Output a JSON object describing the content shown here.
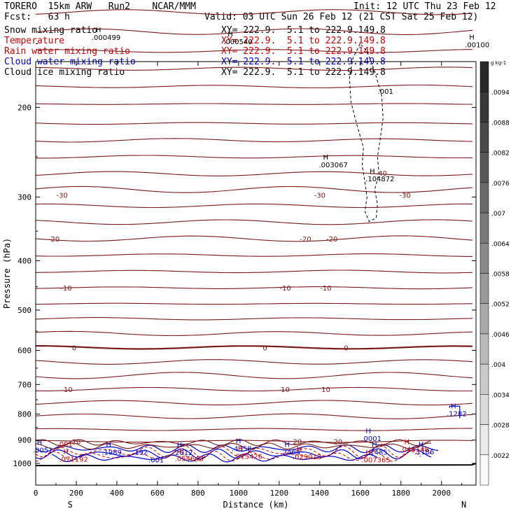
{
  "header": {
    "model": "TORERO  15km ARW   Run2    NCAR/MMM",
    "init": "Init: 12 UTC Thu 23 Feb 12",
    "fcst": "Fcst:   63 h",
    "valid": "Valid: 03 UTC Sun 26 Feb 12 (21 CST Sat 25 Feb 12)"
  },
  "fields": [
    {
      "name": "Snow mixing ratio",
      "xy": "XY= 222.9.  5.1 to 222.9.149.8",
      "color": "#000000"
    },
    {
      "name": "Temperature",
      "xy": "XY= 222.9.  5.1 to 222.9.149.8",
      "color": "#cc0000"
    },
    {
      "name": "Rain water mixing ratio",
      "xy": "XY= 222.9.  5.1 to 222.9.149.8",
      "color": "#cc0000"
    },
    {
      "name": "Cloud water mixing ratio",
      "xy": "XY= 222.9.  5.1 to 222.9.149.8",
      "color": "#0000cc"
    },
    {
      "name": "Cloud ice mixing ratio",
      "xy": "XY= 222.9.  5.1 to 222.9.149.8",
      "color": "#000000"
    }
  ],
  "chart_data": {
    "type": "contour cross-section",
    "xlabel": "Distance (km)",
    "ylabel": "Pressure (hPa)",
    "x_ticks": [
      0,
      200,
      400,
      600,
      800,
      1000,
      1200,
      1400,
      1600,
      1800,
      2000
    ],
    "y_ticks": [
      200,
      300,
      400,
      500,
      600,
      700,
      800,
      900,
      1000
    ],
    "xlim": [
      0,
      2170
    ],
    "ylim_hPa": [
      1050,
      115
    ],
    "y_scale": "log-pressure",
    "end_labels": {
      "left": "S",
      "right": "N"
    },
    "colorbar": {
      "unit": "g kg-1",
      "labels": [
        ".0094",
        ".0088",
        ".0082",
        ".0076",
        ".007",
        ".0064",
        ".0058",
        ".0052",
        ".0046",
        ".004",
        ".0034",
        ".0028",
        ".0022"
      ]
    },
    "temperature_contours": [
      {
        "value": -30,
        "label": "-30",
        "x": [
          130,
          1400,
          1820
        ]
      },
      {
        "value": -20,
        "label": "-20",
        "x": [
          90,
          1330,
          1460
        ]
      },
      {
        "value": -10,
        "label": "-10",
        "x": [
          150,
          1230,
          1430
        ]
      },
      {
        "value": 0,
        "label": "0",
        "x": [
          190,
          1130,
          1530
        ]
      },
      {
        "value": 10,
        "label": "10",
        "x": [
          160,
          1230,
          1430
        ]
      },
      {
        "value": 20,
        "label": "20",
        "x": [
          200,
          1290,
          1490
        ]
      }
    ],
    "maxima": [
      {
        "label": ".000499",
        "x": 310,
        "p": 145,
        "field": "snow"
      },
      {
        "label": ".000540",
        "x": 960,
        "p": 148,
        "field": "snow"
      },
      {
        "label": ".00100",
        "x": 2150,
        "p": 150,
        "field": "snow"
      },
      {
        "label": ".003067",
        "x": 1430,
        "p": 258,
        "field": "snow"
      },
      {
        "label": ".104872",
        "x": 1660,
        "p": 275,
        "field": "ice"
      },
      {
        "label": ".001",
        "x": 1720,
        "p": 185,
        "field": "ice"
      },
      {
        "label": "-40",
        "x": 1710,
        "p": 268,
        "field": "temperature"
      },
      {
        "label": ".1282",
        "x": 2060,
        "p": 795,
        "field": "cloud water"
      },
      {
        "label": ".0001",
        "x": 1640,
        "p": 890,
        "field": "cloud water"
      },
      {
        "label": ".001",
        "x": 140,
        "p": 912,
        "field": "rain"
      },
      {
        "label": ".1989",
        "x": 360,
        "p": 946,
        "field": "cloud water"
      },
      {
        "label": ".192",
        "x": 510,
        "p": 946,
        "field": "cloud water"
      },
      {
        "label": ".2612",
        "x": 710,
        "p": 948,
        "field": "cloud water"
      },
      {
        "label": ".4358",
        "x": 1000,
        "p": 932,
        "field": "cloud water"
      },
      {
        "label": ".2464",
        "x": 1240,
        "p": 946,
        "field": "cloud water"
      },
      {
        "label": ".1485",
        "x": 1670,
        "p": 946,
        "field": "cloud water"
      },
      {
        "label": ".1186",
        "x": 1900,
        "p": 944,
        "field": "cloud water"
      },
      {
        "label": ".071192",
        "x": 150,
        "p": 977,
        "field": "rain"
      },
      {
        "label": ".054643",
        "x": 720,
        "p": 974,
        "field": "rain"
      },
      {
        "label": ".015426",
        "x": 1010,
        "p": 965,
        "field": "rain"
      },
      {
        "label": ".029013",
        "x": 1300,
        "p": 966,
        "field": "rain"
      },
      {
        "label": ".007365",
        "x": 1640,
        "p": 980,
        "field": "rain"
      },
      {
        "label": ".044148",
        "x": 1830,
        "p": 934,
        "field": "rain"
      },
      {
        "label": ".001",
        "x": 590,
        "p": 980,
        "field": "cloud water"
      },
      {
        "label": ".0051",
        "x": 20,
        "p": 937,
        "field": "cloud water"
      }
    ]
  }
}
